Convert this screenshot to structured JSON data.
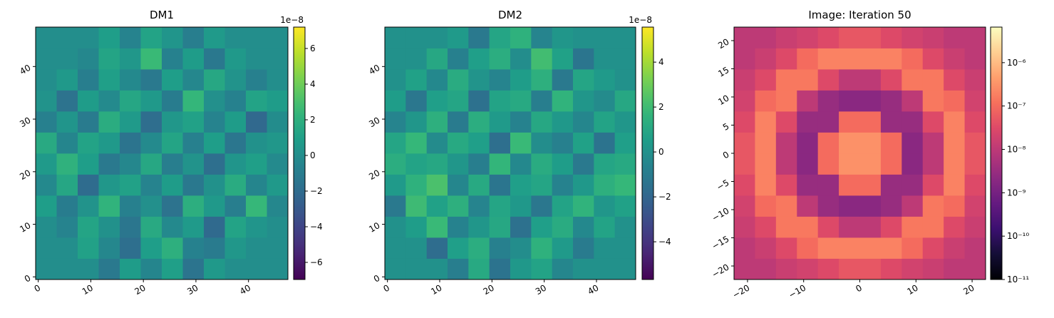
{
  "chart_data": [
    {
      "type": "heatmap",
      "title": "DM1",
      "colormap": "viridis",
      "xlim": [
        -0.5,
        47.5
      ],
      "ylim": [
        -0.5,
        47.5
      ],
      "xticks": [
        0,
        10,
        20,
        30,
        40
      ],
      "yticks": [
        0,
        10,
        20,
        30,
        40
      ],
      "z": [
        [
          0,
          0,
          0,
          -1.2,
          0.8,
          -0.5,
          1.0,
          -1.5,
          0.6,
          0,
          0,
          0
        ],
        [
          0,
          0,
          1.1,
          -0.4,
          -1.8,
          0.9,
          2.0,
          -0.7,
          -1.1,
          0.5,
          0,
          0
        ],
        [
          0,
          -0.6,
          1.3,
          0.2,
          -1.4,
          1.6,
          -0.3,
          0.7,
          -2.1,
          1.2,
          0.4,
          0
        ],
        [
          0.9,
          -1.0,
          0.3,
          2.2,
          -0.8,
          0.1,
          -1.6,
          1.9,
          0.6,
          -0.9,
          2.5,
          -0.4
        ],
        [
          -0.3,
          1.4,
          -2.0,
          0.5,
          1.1,
          -0.6,
          0.8,
          -1.3,
          0.2,
          1.7,
          -0.5,
          0.6
        ],
        [
          0.7,
          2.1,
          0.9,
          -1.2,
          -0.4,
          1.5,
          -0.9,
          0.3,
          -1.8,
          0.4,
          1.0,
          -0.2
        ],
        [
          1.6,
          -0.5,
          1.2,
          0.6,
          -1.5,
          -0.2,
          1.3,
          -0.8,
          0.9,
          -1.4,
          0.2,
          0.5
        ],
        [
          -0.8,
          0.4,
          -1.1,
          1.8,
          0.7,
          -1.9,
          0.5,
          1.1,
          -0.6,
          0.8,
          -2.2,
          -0.1
        ],
        [
          0.3,
          -1.6,
          0.8,
          -0.2,
          1.4,
          0.6,
          -1.0,
          2.4,
          0.1,
          -0.7,
          1.2,
          0.8
        ],
        [
          0,
          0.6,
          -0.9,
          1.0,
          -0.3,
          -1.2,
          0.9,
          -0.4,
          1.5,
          0.3,
          -0.8,
          0
        ],
        [
          0,
          0,
          -0.4,
          1.3,
          0.5,
          2.6,
          -0.7,
          0.8,
          -1.3,
          0.6,
          0,
          0
        ],
        [
          0,
          0,
          0,
          0.9,
          -0.6,
          1.2,
          0.4,
          -0.9,
          0.7,
          0,
          0,
          0
        ]
      ],
      "colorbar": {
        "lim": [
          -6.96,
          7.2
        ],
        "offset_label": "1e−8",
        "ticks": [
          {
            "value": -6,
            "label": "−6"
          },
          {
            "value": -4,
            "label": "−4"
          },
          {
            "value": -2,
            "label": "−2"
          },
          0,
          2,
          4,
          6
        ]
      }
    },
    {
      "type": "heatmap",
      "title": "DM2",
      "colormap": "viridis",
      "xlim": [
        -0.5,
        47.5
      ],
      "ylim": [
        -0.5,
        47.5
      ],
      "xticks": [
        0,
        10,
        20,
        30,
        40
      ],
      "yticks": [
        0,
        10,
        20,
        30,
        40
      ],
      "z": [
        [
          0,
          0,
          0,
          -0.9,
          1.1,
          -1.4,
          0.3,
          0.8,
          -0.5,
          0,
          0,
          0
        ],
        [
          0,
          0,
          -1.7,
          0.6,
          1.3,
          -0.8,
          -0.2,
          1.5,
          0.4,
          -1.0,
          0,
          0
        ],
        [
          0,
          0.5,
          1.9,
          -0.7,
          0.2,
          1.0,
          -1.5,
          0.6,
          1.2,
          -0.4,
          0.8,
          0
        ],
        [
          -1.1,
          2.0,
          0.7,
          1.4,
          -0.6,
          0.9,
          0.3,
          -1.2,
          0.8,
          1.6,
          0.2,
          0.7
        ],
        [
          0.4,
          1.5,
          2.3,
          -0.5,
          1.1,
          -1.3,
          0.6,
          0.9,
          -0.7,
          0.3,
          1.4,
          1.8
        ],
        [
          1.3,
          0.8,
          1.0,
          0.2,
          -0.9,
          1.7,
          -0.4,
          1.2,
          0.5,
          -1.1,
          0.9,
          1.1
        ],
        [
          0.9,
          1.8,
          -0.3,
          1.1,
          0.6,
          -1.6,
          1.9,
          -0.2,
          -0.8,
          0.7,
          -1.4,
          0.6
        ],
        [
          -0.6,
          0.2,
          1.4,
          -1.0,
          1.3,
          0.4,
          -0.7,
          1.0,
          0.3,
          -0.5,
          0.8,
          0.2
        ],
        [
          0.5,
          -1.2,
          0.6,
          0.9,
          -1.5,
          0.8,
          1.1,
          -0.9,
          1.6,
          0.2,
          -0.3,
          1.0
        ],
        [
          0,
          0.7,
          -0.4,
          1.2,
          0.1,
          -0.6,
          0.5,
          1.4,
          -1.1,
          0.9,
          0.4,
          0
        ],
        [
          0,
          0,
          1.0,
          -0.8,
          0.6,
          1.3,
          -0.2,
          2.1,
          0.7,
          -1.3,
          0,
          0
        ],
        [
          0,
          0,
          0,
          0.4,
          -1.1,
          0.9,
          1.5,
          -0.6,
          0.2,
          0,
          0,
          0
        ]
      ],
      "colorbar": {
        "lim": [
          -5.68,
          5.56
        ],
        "offset_label": "1e−8",
        "ticks": [
          {
            "value": -4,
            "label": "−4"
          },
          {
            "value": -2,
            "label": "−2"
          },
          0,
          2,
          4
        ]
      }
    },
    {
      "type": "heatmap",
      "title": "Image: Iteration 50",
      "colormap": "magma",
      "xlim": [
        -22.4,
        22.4
      ],
      "ylim": [
        -22.4,
        22.4
      ],
      "xticks": [
        {
          "value": -20,
          "label": "−20"
        },
        {
          "value": -10,
          "label": "−10"
        },
        0,
        10,
        20
      ],
      "yticks": [
        {
          "value": -20,
          "label": "−20"
        },
        {
          "value": -15,
          "label": "−15"
        },
        {
          "value": -10,
          "label": "−10"
        },
        {
          "value": -5,
          "label": "−5"
        },
        0,
        5,
        10,
        15,
        20
      ],
      "z": [
        [
          1e-08,
          1e-08,
          1.5e-08,
          2e-08,
          3e-08,
          5e-08,
          5e-08,
          3e-08,
          2e-08,
          1.5e-08,
          1e-08,
          1e-08
        ],
        [
          1e-08,
          1.5e-08,
          3e-08,
          1e-07,
          2e-07,
          2e-07,
          2e-07,
          2e-07,
          1e-07,
          3e-08,
          1.5e-08,
          1e-08
        ],
        [
          1.5e-08,
          3e-08,
          1.5e-07,
          1.5e-07,
          3e-08,
          1e-08,
          1e-08,
          3e-08,
          1.5e-07,
          1.5e-07,
          3e-08,
          1.5e-08
        ],
        [
          2e-08,
          1e-07,
          1.5e-07,
          1e-08,
          3e-09,
          2e-09,
          2e-09,
          3e-09,
          1e-08,
          1.5e-07,
          1e-07,
          2e-08
        ],
        [
          3e-08,
          2e-07,
          3e-08,
          3e-09,
          3e-09,
          1e-07,
          1e-07,
          3e-09,
          3e-09,
          3e-08,
          2e-07,
          3e-08
        ],
        [
          5e-08,
          2e-07,
          1e-08,
          2e-09,
          1e-07,
          3e-07,
          3e-07,
          1e-07,
          2e-09,
          1e-08,
          2e-07,
          5e-08
        ],
        [
          5e-08,
          2e-07,
          1e-08,
          2e-09,
          1e-07,
          3e-07,
          3e-07,
          1e-07,
          2e-09,
          1e-08,
          2e-07,
          5e-08
        ],
        [
          3e-08,
          2e-07,
          3e-08,
          3e-09,
          3e-09,
          1e-07,
          1e-07,
          3e-09,
          3e-09,
          3e-08,
          2e-07,
          3e-08
        ],
        [
          2e-08,
          1e-07,
          1.5e-07,
          1e-08,
          3e-09,
          2e-09,
          2e-09,
          3e-09,
          1e-08,
          1.5e-07,
          1e-07,
          2e-08
        ],
        [
          1.5e-08,
          3e-08,
          1.5e-07,
          1.5e-07,
          3e-08,
          1e-08,
          1e-08,
          3e-08,
          1.5e-07,
          1.5e-07,
          3e-08,
          1.5e-08
        ],
        [
          1e-08,
          1.5e-08,
          3e-08,
          1e-07,
          2e-07,
          2e-07,
          2e-07,
          2e-07,
          1e-07,
          3e-08,
          1.5e-08,
          1e-08
        ],
        [
          1e-08,
          1e-08,
          1.5e-08,
          2e-08,
          3e-08,
          5e-08,
          5e-08,
          3e-08,
          2e-08,
          1.5e-08,
          1e-08,
          1e-08
        ]
      ],
      "colorbar": {
        "lim": [
          1e-11,
          6.6e-06
        ],
        "scale": "log",
        "ticks": [
          {
            "value": 1e-11,
            "label": "10⁻¹¹"
          },
          {
            "value": 1e-10,
            "label": "10⁻¹⁰"
          },
          {
            "value": 1e-09,
            "label": "10⁻⁹"
          },
          {
            "value": 1e-08,
            "label": "10⁻⁸"
          },
          {
            "value": 1e-07,
            "label": "10⁻⁷"
          },
          {
            "value": 1e-06,
            "label": "10⁻⁶"
          }
        ]
      }
    }
  ]
}
